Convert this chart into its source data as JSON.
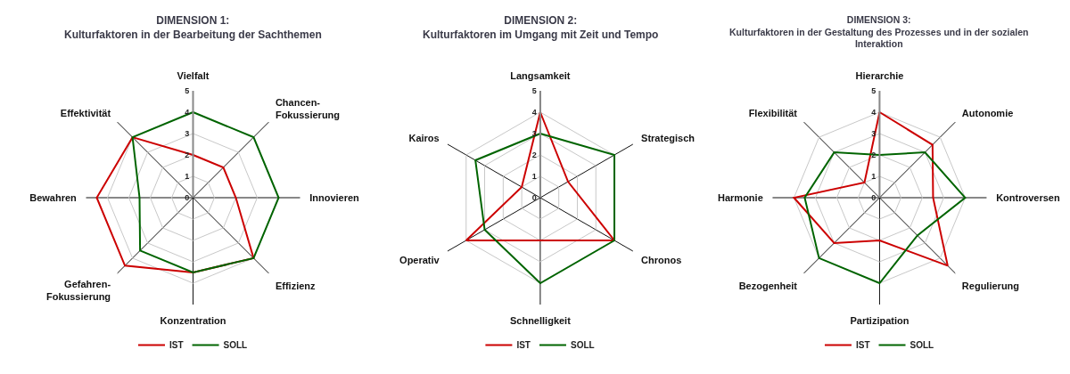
{
  "chart_data": [
    {
      "type": "radar",
      "title": "DIMENSION 1:\nKulturfaktoren in der Bearbeitung der Sachthemen",
      "categories": [
        "Vielfalt",
        "Chancen-\nFokussierung",
        "Innovieren",
        "Effizienz",
        "Konzentration",
        "Gefahren-\nFokussierung",
        "Bewahren",
        "Effektivität"
      ],
      "ylim": [
        0,
        5
      ],
      "yticks": [
        0,
        1,
        2,
        3,
        4,
        5
      ],
      "grid": true,
      "legend": "bottom",
      "series": [
        {
          "name": "IST",
          "color": "#cc0000",
          "values": [
            2,
            2,
            2,
            4,
            3.5,
            4.5,
            4.5,
            4
          ]
        },
        {
          "name": "SOLL",
          "color": "#006400",
          "values": [
            4,
            4,
            4,
            4,
            3.5,
            3.5,
            2.5,
            4
          ]
        }
      ]
    },
    {
      "type": "radar",
      "title": "DIMENSION 2:\nKulturfaktoren im Umgang mit Zeit und Tempo",
      "categories": [
        "Langsamkeit",
        "Strategisch",
        "Chronos",
        "Schnelligkeit",
        "Operativ",
        "Kairos"
      ],
      "ylim": [
        0,
        5
      ],
      "yticks": [
        0,
        1,
        2,
        3,
        4,
        5
      ],
      "grid": true,
      "legend": "bottom",
      "series": [
        {
          "name": "IST",
          "color": "#cc0000",
          "values": [
            4,
            1.5,
            4,
            2,
            4,
            1
          ]
        },
        {
          "name": "SOLL",
          "color": "#006400",
          "values": [
            3,
            4,
            4,
            4,
            3,
            3.5
          ]
        }
      ]
    },
    {
      "type": "radar",
      "title": "DIMENSION 3:\nKulturfaktoren in der Gestaltung des Prozesses und in der sozialen\nInteraktion",
      "categories": [
        "Hierarchie",
        "Autonomie",
        "Kontroversen",
        "Regulierung",
        "Partizipation",
        "Bezogenheit",
        "Harmonie",
        "Flexibilität"
      ],
      "ylim": [
        0,
        5
      ],
      "yticks": [
        0,
        1,
        2,
        3,
        4,
        5
      ],
      "grid": true,
      "legend": "bottom",
      "series": [
        {
          "name": "IST",
          "color": "#cc0000",
          "values": [
            4,
            3.5,
            2.5,
            4.5,
            2,
            3,
            4,
            1
          ]
        },
        {
          "name": "SOLL",
          "color": "#006400",
          "values": [
            2,
            3,
            4,
            2.5,
            4,
            4,
            3.5,
            3
          ]
        }
      ]
    }
  ]
}
